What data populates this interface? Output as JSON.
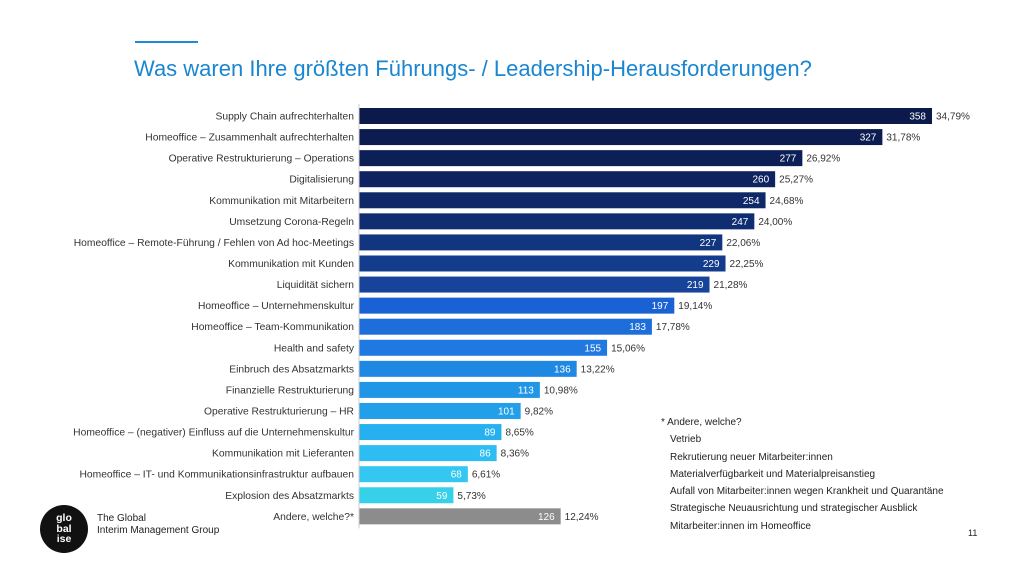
{
  "header": {
    "title": "Was waren Ihre größten Führungs- / Leadership-Herausforderungen?"
  },
  "chart_data": {
    "type": "bar",
    "orientation": "horizontal",
    "title": "Was waren Ihre größten Führungs- / Leadership-Herausforderungen?",
    "xlabel": "",
    "ylabel": "",
    "categories": [
      "Supply Chain aufrechterhalten",
      "Homeoffice – Zusammenhalt aufrechterhalten",
      "Operative Restrukturierung – Operations",
      "Digitalisierung",
      "Kommunikation mit Mitarbeitern",
      "Umsetzung Corona-Regeln",
      "Homeoffice – Remote-Führung / Fehlen von Ad hoc-Meetings",
      "Kommunikation mit Kunden",
      "Liquidität sichern",
      "Homeoffice – Unternehmenskultur",
      "Homeoffice – Team-Kommunikation",
      "Health and safety",
      "Einbruch des Absatzmarkts",
      "Finanzielle Restrukturierung",
      "Operative Restrukturierung – HR",
      "Homeoffice – (negativer) Einfluss auf die Unternehmenskultur",
      "Kommunikation mit Lieferanten",
      "Homeoffice – IT- und Kommunikationsinfrastruktur aufbauen",
      "Explosion des Absatzmarkts",
      "Andere, welche?*"
    ],
    "values": [
      358,
      327,
      277,
      260,
      254,
      247,
      227,
      229,
      219,
      197,
      183,
      155,
      136,
      113,
      101,
      89,
      86,
      68,
      59,
      126
    ],
    "percent_labels": [
      "34,79%",
      "31,78%",
      "26,92%",
      "25,27%",
      "24,68%",
      "24,00%",
      "22,06%",
      "22,25%",
      "21,28%",
      "19,14%",
      "17,78%",
      "15,06%",
      "13,22%",
      "10,98%",
      "9,82%",
      "8,65%",
      "8,36%",
      "6,61%",
      "5,73%",
      "12,24%"
    ],
    "colors": [
      "#0b1a4a",
      "#0c1c50",
      "#0d1f57",
      "#0e2360",
      "#0f2868",
      "#102d72",
      "#12357f",
      "#143c8c",
      "#17449a",
      "#1a62d4",
      "#1d6ddb",
      "#1f79e0",
      "#1f88e3",
      "#2196e6",
      "#229fe9",
      "#27b0ef",
      "#2ebdf2",
      "#33c7f2",
      "#36d0e8",
      "#8c8c8c"
    ],
    "xlim": [
      0,
      358
    ],
    "grid": false,
    "legend": "none"
  },
  "note": {
    "heading": "* Andere, welche?",
    "items": [
      "Vetrieb",
      "Rekrutierung neuer Mitarbeiter:innen",
      "Materialverfügbarkeit und Materialpreisanstieg",
      "Aufall von Mitarbeiter:innen wegen Krankheit und Quarantäne",
      "Strategische Neuausrichtung und strategischer Ausblick",
      "Mitarbeiter:innen im Homeoffice"
    ]
  },
  "footer": {
    "logo_lines": [
      "glo",
      "bal",
      "ise"
    ],
    "company_line1": "The Global",
    "company_line2": "Interim Management Group",
    "page_number": "11"
  }
}
